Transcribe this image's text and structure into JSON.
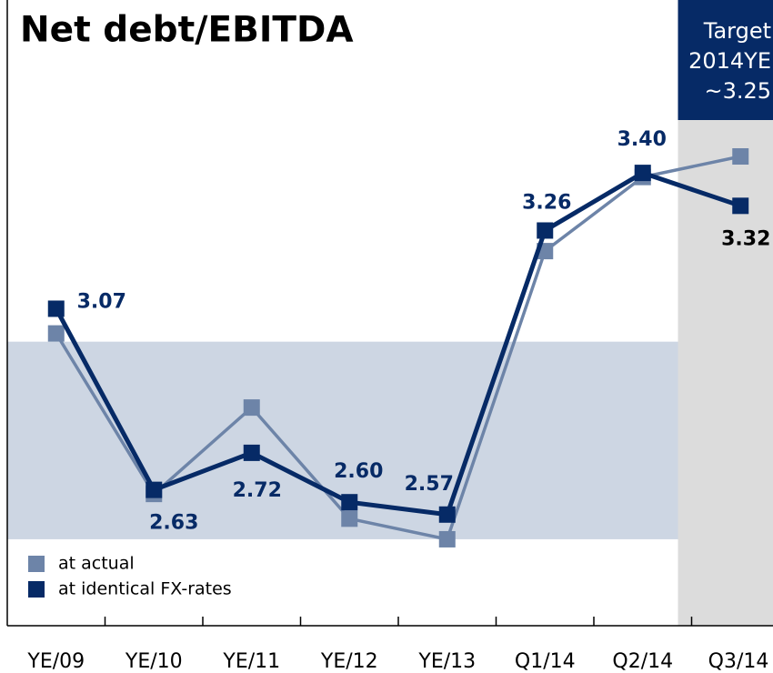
{
  "chart_data": {
    "type": "line",
    "title": "Net debt/EBITDA",
    "categories": [
      "YE/09",
      "YE/10",
      "YE/11",
      "YE/12",
      "YE/13",
      "Q1/14",
      "Q2/14",
      "Q3/14"
    ],
    "series": [
      {
        "name": "at actual",
        "color": "#6d84a8",
        "values": [
          3.01,
          2.62,
          2.83,
          2.56,
          2.51,
          3.21,
          3.39,
          3.44
        ]
      },
      {
        "name": "at identical FX-rates",
        "color": "#062a66",
        "values": [
          3.07,
          2.63,
          2.72,
          2.6,
          2.57,
          3.26,
          3.4,
          3.32
        ],
        "value_labels": [
          "3.07",
          "2.63",
          "2.72",
          "2.60",
          "2.57",
          "3.26",
          "3.40",
          "3.32"
        ]
      }
    ],
    "ylim": [
      2.3,
      3.82
    ],
    "band": [
      2.51,
      2.99
    ],
    "annotation": {
      "lines": [
        "Target",
        "2014YE",
        "~3.25"
      ]
    },
    "legend": "lower left"
  }
}
